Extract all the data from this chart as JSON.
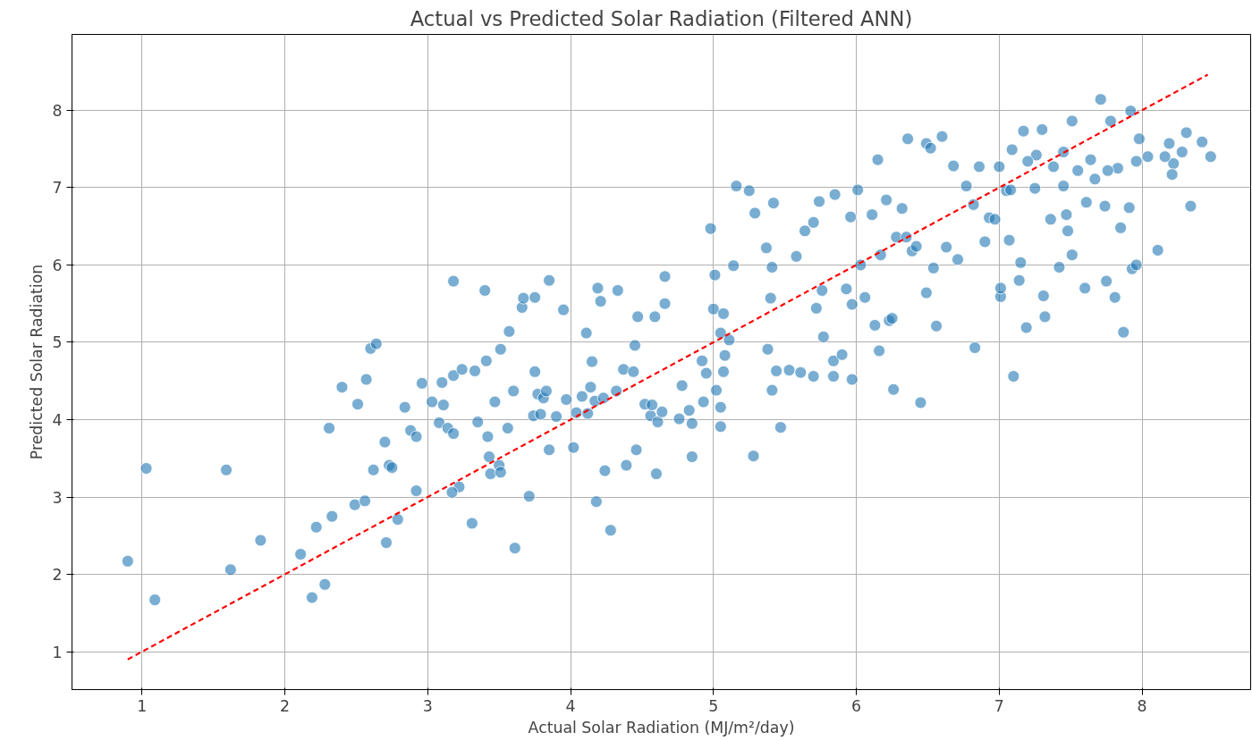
{
  "chart_data": {
    "type": "scatter",
    "title": "Actual vs Predicted Solar Radiation (Filtered ANN)",
    "xlabel": "Actual Solar Radiation (MJ/m²/day)",
    "ylabel": "Predicted Solar Radiation",
    "xlim": [
      0.51,
      8.76
    ],
    "ylim": [
      0.51,
      8.98
    ],
    "xticks": [
      1,
      2,
      3,
      4,
      5,
      6,
      7,
      8
    ],
    "yticks": [
      1,
      2,
      3,
      4,
      5,
      6,
      7,
      8
    ],
    "grid": true,
    "series": [
      {
        "marker": "circle",
        "color": "#1f77b4",
        "x": [
          0.9,
          1.03,
          1.09,
          1.59,
          1.62,
          1.83,
          2.11,
          2.19,
          2.22,
          2.28,
          2.33,
          2.31,
          2.4,
          2.51,
          2.49,
          2.57,
          2.56,
          2.6,
          2.64,
          2.62,
          2.7,
          2.73,
          2.75,
          2.71,
          2.79,
          2.84,
          2.88,
          2.92,
          2.92,
          2.96,
          3.03,
          3.08,
          3.11,
          3.1,
          3.14,
          3.18,
          3.18,
          3.18,
          3.24,
          3.22,
          3.17,
          3.31,
          3.33,
          3.35,
          3.4,
          3.41,
          3.42,
          3.43,
          3.44,
          3.47,
          3.5,
          3.51,
          3.51,
          3.56,
          3.57,
          3.6,
          3.61,
          3.66,
          3.67,
          3.71,
          3.74,
          3.75,
          3.75,
          3.77,
          3.79,
          3.81,
          3.83,
          3.85,
          3.85,
          3.95,
          3.9,
          3.97,
          4.02,
          4.04,
          4.08,
          4.11,
          4.12,
          4.14,
          4.15,
          4.17,
          4.18,
          4.19,
          4.21,
          4.23,
          4.24,
          4.28,
          4.32,
          4.33,
          4.37,
          4.39,
          4.44,
          4.45,
          4.46,
          4.47,
          4.52,
          4.56,
          4.57,
          4.59,
          4.6,
          4.61,
          4.64,
          4.66,
          4.66,
          4.76,
          4.78,
          4.83,
          4.85,
          4.85,
          4.92,
          4.93,
          4.95,
          4.98,
          5.0,
          5.01,
          5.02,
          5.05,
          5.05,
          5.05,
          5.07,
          5.08,
          5.07,
          5.11,
          5.14,
          5.16,
          5.28,
          5.25,
          5.29,
          5.37,
          5.38,
          5.41,
          5.41,
          5.4,
          5.42,
          5.47,
          5.44,
          5.53,
          5.58,
          5.61,
          5.64,
          5.7,
          5.72,
          5.7,
          5.74,
          5.76,
          5.77,
          5.84,
          5.84,
          5.85,
          5.9,
          5.93,
          5.96,
          5.97,
          5.97,
          6.01,
          6.03,
          6.06,
          6.11,
          6.13,
          6.15,
          6.16,
          6.17,
          6.21,
          6.23,
          6.25,
          6.26,
          6.28,
          6.32,
          6.35,
          6.36,
          6.39,
          6.42,
          6.45,
          6.49,
          6.49,
          6.52,
          6.54,
          6.56,
          6.6,
          6.63,
          6.68,
          6.71,
          6.77,
          6.82,
          6.83,
          6.86,
          6.9,
          6.93,
          6.97,
          7.0,
          7.01,
          7.01,
          7.05,
          7.07,
          7.09,
          7.1,
          7.14,
          7.15,
          7.17,
          7.19,
          7.25,
          7.26,
          7.3,
          7.31,
          7.32,
          7.36,
          7.38,
          7.42,
          7.45,
          7.45,
          7.48,
          7.51,
          7.6,
          7.61,
          7.64,
          7.71,
          7.74,
          7.75,
          7.78,
          7.81,
          7.85,
          7.87,
          7.92,
          7.91,
          7.93,
          7.96,
          7.98,
          8.04,
          8.11,
          8.19,
          8.22,
          8.31,
          8.34,
          8.42,
          8.48,
          7.55,
          7.67,
          7.83,
          7.96,
          8.16,
          8.28,
          8.21,
          7.2,
          7.08,
          7.47,
          7.51,
          7.76
        ],
        "values": [
          2.17,
          3.37,
          1.67,
          3.35,
          2.06,
          2.44,
          2.26,
          1.7,
          2.61,
          1.87,
          2.75,
          3.89,
          4.42,
          4.2,
          2.9,
          4.52,
          2.95,
          4.92,
          4.98,
          3.35,
          3.71,
          3.41,
          3.38,
          2.41,
          2.71,
          4.16,
          3.86,
          3.78,
          3.08,
          4.47,
          4.23,
          3.96,
          4.19,
          4.48,
          3.89,
          5.79,
          4.57,
          3.82,
          4.65,
          3.13,
          3.06,
          2.66,
          4.63,
          3.97,
          5.67,
          4.76,
          3.78,
          3.52,
          3.3,
          4.23,
          3.41,
          4.91,
          3.32,
          3.89,
          5.14,
          4.37,
          2.34,
          5.45,
          5.57,
          3.01,
          4.05,
          5.58,
          4.62,
          4.33,
          4.07,
          4.28,
          4.37,
          5.8,
          3.61,
          5.42,
          4.04,
          4.26,
          3.64,
          4.09,
          4.3,
          5.12,
          4.08,
          4.42,
          4.75,
          4.24,
          2.94,
          5.7,
          5.53,
          4.28,
          3.34,
          2.57,
          4.37,
          5.67,
          4.65,
          3.41,
          4.62,
          4.96,
          3.61,
          5.33,
          4.2,
          4.05,
          4.19,
          5.33,
          3.3,
          3.97,
          4.1,
          5.85,
          5.5,
          4.01,
          4.44,
          4.12,
          3.95,
          3.52,
          4.76,
          4.23,
          4.6,
          6.47,
          5.43,
          5.87,
          4.38,
          5.12,
          4.16,
          3.91,
          5.37,
          4.83,
          4.62,
          5.03,
          5.99,
          7.02,
          3.53,
          6.96,
          6.67,
          6.22,
          4.91,
          4.38,
          5.97,
          5.57,
          6.8,
          3.9,
          4.63,
          4.64,
          6.11,
          4.61,
          6.44,
          4.56,
          5.44,
          6.55,
          6.82,
          5.67,
          5.07,
          4.56,
          4.76,
          6.91,
          4.84,
          5.69,
          6.62,
          5.49,
          4.52,
          6.97,
          6.0,
          5.58,
          6.65,
          5.22,
          7.36,
          4.89,
          6.13,
          6.84,
          5.28,
          5.31,
          4.39,
          6.36,
          6.73,
          6.36,
          7.63,
          6.18,
          6.24,
          4.22,
          7.57,
          5.64,
          7.51,
          5.96,
          5.21,
          7.66,
          6.23,
          7.28,
          6.07,
          7.02,
          6.78,
          4.93,
          7.27,
          6.3,
          6.61,
          6.59,
          7.27,
          5.59,
          5.7,
          6.96,
          6.32,
          7.49,
          4.56,
          5.8,
          6.03,
          7.73,
          5.19,
          6.99,
          7.42,
          7.75,
          5.6,
          5.33,
          6.59,
          7.27,
          5.97,
          7.02,
          7.46,
          6.44,
          7.86,
          5.7,
          6.81,
          7.36,
          8.14,
          6.76,
          5.79,
          7.86,
          5.58,
          6.48,
          5.13,
          7.99,
          6.74,
          5.95,
          6.0,
          7.63,
          7.4,
          6.19,
          7.57,
          7.31,
          7.71,
          6.76,
          7.59,
          7.4,
          7.22,
          7.11,
          7.25,
          7.34,
          7.4,
          7.46,
          7.17,
          7.34,
          6.97,
          6.65,
          6.13,
          7.22
        ]
      },
      {
        "type": "line",
        "color": "#ff0000",
        "line_style": "dashed",
        "x": [
          0.9,
          8.46
        ],
        "values": [
          0.9,
          8.46
        ]
      }
    ]
  }
}
